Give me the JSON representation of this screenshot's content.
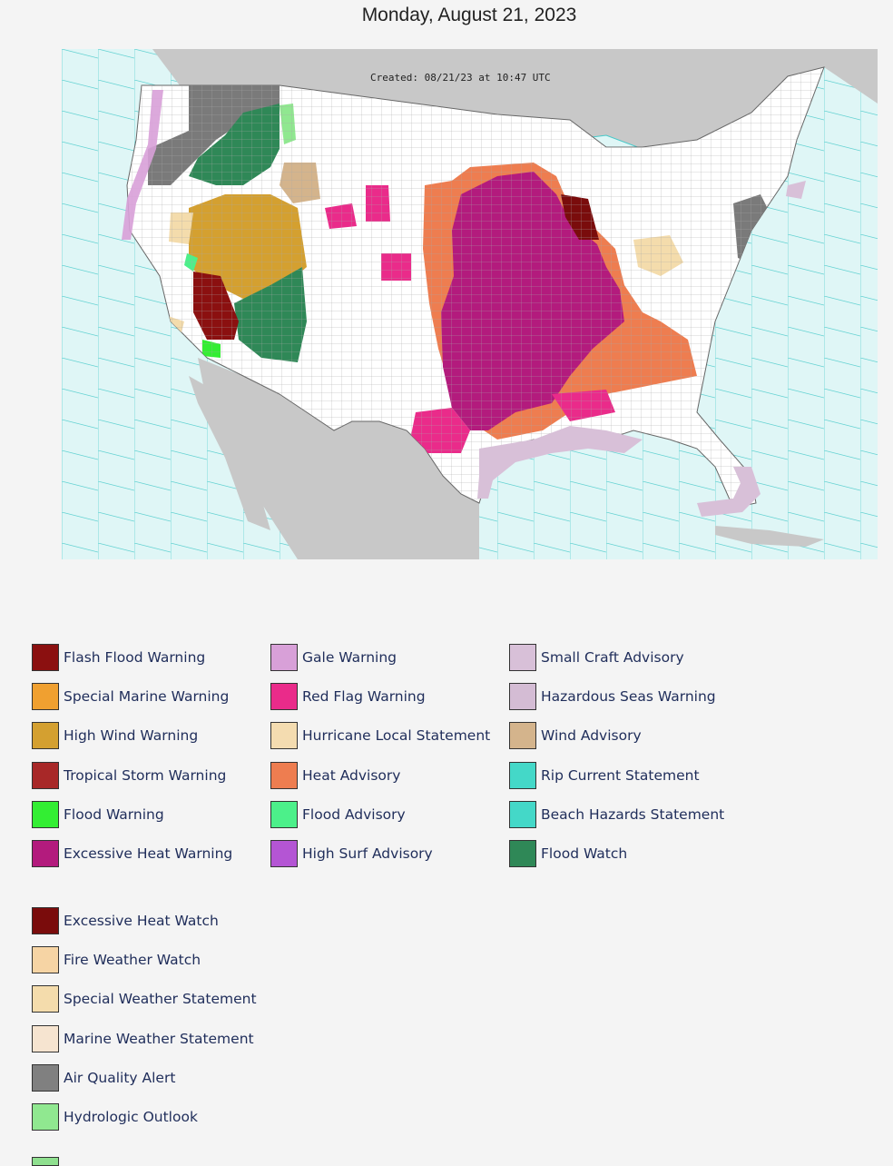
{
  "title": "Monday, August 21, 2023",
  "map": {
    "created_label": "Created: 08/21/23 at 10:47 UTC",
    "colors": {
      "ocean": "#dff6f6",
      "land_outside": "#c8c8c8",
      "us_land": "#ffffff",
      "marine_zone_line": "#3cc8c8",
      "county_line": "#9a9a9a"
    }
  },
  "legend": {
    "col1": [
      {
        "label": "Flash Flood Warning",
        "color": "#8b1010"
      },
      {
        "label": "Special Marine Warning",
        "color": "#f0a030"
      },
      {
        "label": "High Wind Warning",
        "color": "#d4a030"
      },
      {
        "label": "Tropical Storm Warning",
        "color": "#a82828"
      },
      {
        "label": "Flood Warning",
        "color": "#33ee33"
      },
      {
        "label": "Excessive Heat Warning",
        "color": "#b31b7d"
      }
    ],
    "col2": [
      {
        "label": "Gale Warning",
        "color": "#d8a0d8"
      },
      {
        "label": "Red Flag Warning",
        "color": "#ea2b8a"
      },
      {
        "label": "Hurricane Local Statement",
        "color": "#f4dcb0"
      },
      {
        "label": "Heat Advisory",
        "color": "#ee7d50"
      },
      {
        "label": "Flood Advisory",
        "color": "#4cf08a"
      },
      {
        "label": "High Surf Advisory",
        "color": "#b455d4"
      }
    ],
    "col3": [
      {
        "label": "Small Craft Advisory",
        "color": "#d8c0d8"
      },
      {
        "label": "Hazardous Seas Warning",
        "color": "#d4bcd4"
      },
      {
        "label": "Wind Advisory",
        "color": "#d4b48c"
      },
      {
        "label": "Rip Current Statement",
        "color": "#44d8c8"
      },
      {
        "label": "Beach Hazards Statement",
        "color": "#44d8c8"
      },
      {
        "label": "Flood Watch",
        "color": "#2f8857"
      }
    ],
    "col4": [
      {
        "label": "Excessive Heat Watch",
        "color": "#7a0c0c"
      },
      {
        "label": "Fire Weather Watch",
        "color": "#f6d4a4"
      },
      {
        "label": "Special Weather Statement",
        "color": "#f4dcac"
      },
      {
        "label": "Marine Weather Statement",
        "color": "#f6e4d0"
      },
      {
        "label": "Air Quality Alert",
        "color": "#808080"
      },
      {
        "label": "Hydrologic Outlook",
        "color": "#90e890"
      }
    ]
  }
}
